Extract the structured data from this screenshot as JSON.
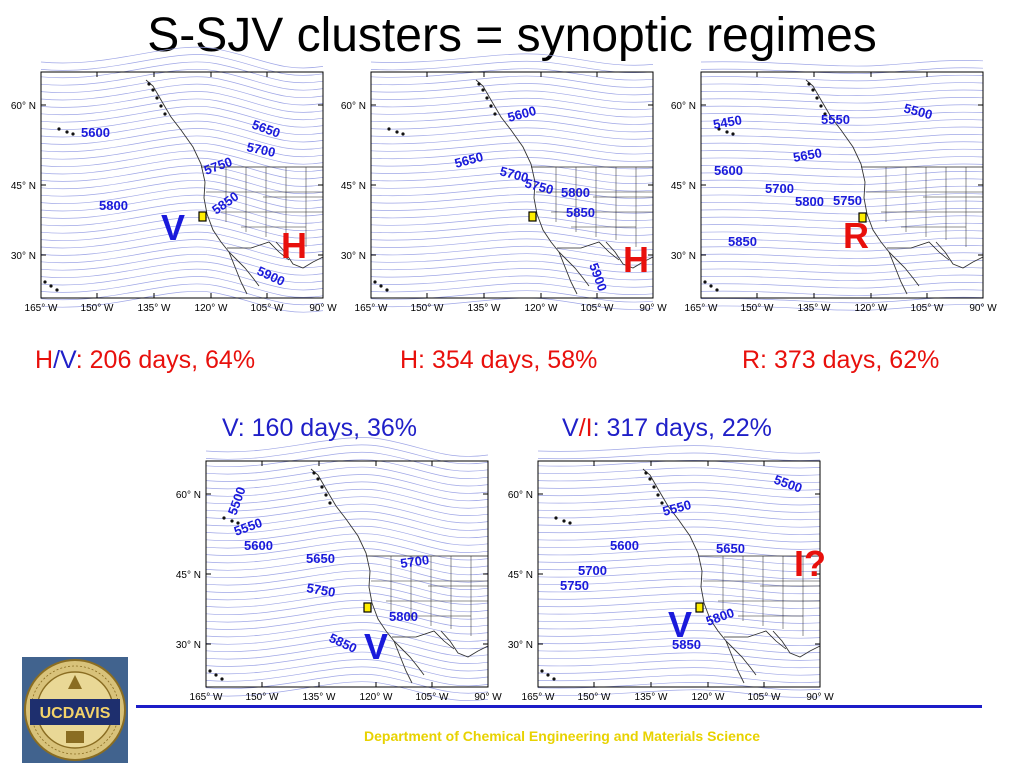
{
  "title": "S-SJV clusters = synoptic regimes",
  "lat_labels": [
    "60° N",
    "45° N",
    "30° N"
  ],
  "lon_labels": [
    "165° W",
    "150° W",
    "135° W",
    "120° W",
    "105° W",
    "90° W"
  ],
  "panels": [
    {
      "id": "HV",
      "contour_labels": [
        "5600",
        "5650",
        "5700",
        "5750",
        "5800",
        "5850",
        "5900"
      ],
      "letters": [
        {
          "text": "V",
          "color": "#1a1adb"
        },
        {
          "text": "H",
          "color": "#e8100c"
        }
      ]
    },
    {
      "id": "H",
      "contour_labels": [
        "5600",
        "5650",
        "5700",
        "5750",
        "5800",
        "5850",
        "5900"
      ],
      "letters": [
        {
          "text": "H",
          "color": "#e8100c"
        }
      ]
    },
    {
      "id": "R",
      "contour_labels": [
        "5500",
        "5450",
        "5550",
        "5600",
        "5650",
        "5700",
        "5750",
        "5800",
        "5850"
      ],
      "letters": [
        {
          "text": "R",
          "color": "#e8100c"
        }
      ]
    },
    {
      "id": "V",
      "contour_labels": [
        "5500",
        "5550",
        "5600",
        "5650",
        "5700",
        "5750",
        "5800",
        "5850"
      ],
      "letters": [
        {
          "text": "V",
          "color": "#1a1adb"
        }
      ]
    },
    {
      "id": "VI",
      "contour_labels": [
        "5500",
        "5550",
        "5600",
        "5650",
        "5700",
        "5750",
        "5800",
        "5850"
      ],
      "letters": [
        {
          "text": "I?",
          "color": "#e8100c"
        },
        {
          "text": "V",
          "color": "#1a1adb"
        }
      ]
    }
  ],
  "captions": {
    "hv": {
      "part_h": "H",
      "slash": "/",
      "part_v": "V",
      "rest": ": 206 days, 64%"
    },
    "h": "H: 354 days, 58%",
    "r": "R: 373 days, 62%",
    "v": "V: 160 days, 36%",
    "vi": {
      "part_v": "V",
      "slash": "/",
      "part_i": "I",
      "rest": ": 317 days, 22%"
    }
  },
  "logo_text": "UCDAVIS",
  "footer": "Department of Chemical Engineering and Materials Science"
}
